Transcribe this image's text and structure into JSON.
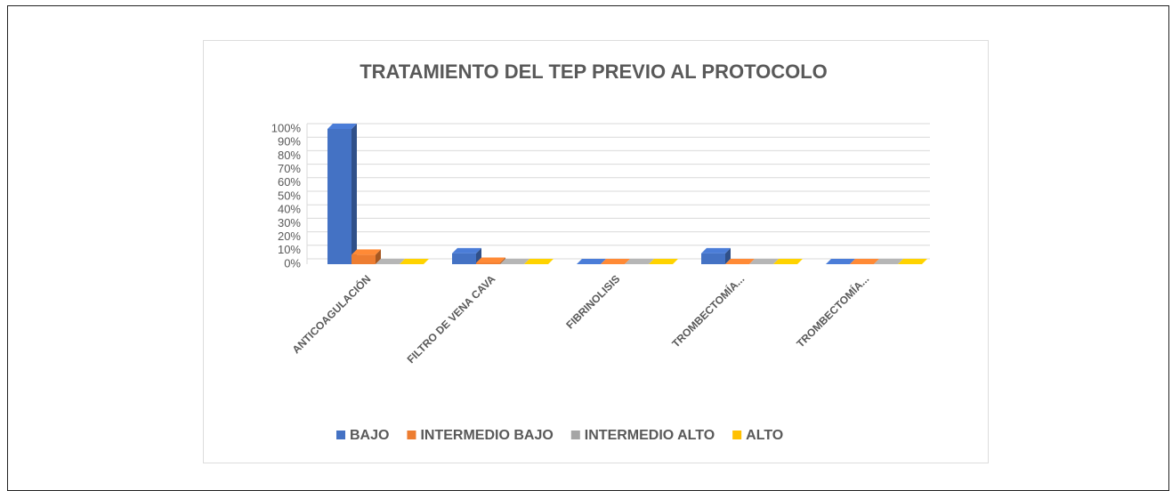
{
  "chart_data": {
    "type": "bar3d",
    "title": "TRATAMIENTO DEL TEP PREVIO AL PROTOCOLO",
    "categories": [
      "ANTICOAGULACIÓN",
      "FILTRO DE VENA CAVA",
      "FIBRINOLISIS",
      "TROMBECTOMÍA...",
      "TROMBECTOMÍA..."
    ],
    "series": [
      {
        "name": "BAJO",
        "color": "#4472c4",
        "values": [
          100,
          8,
          0,
          8,
          0
        ]
      },
      {
        "name": "INTERMEDIO BAJO",
        "color": "#ed7d31",
        "values": [
          7,
          1,
          0,
          0,
          0
        ]
      },
      {
        "name": "INTERMEDIO ALTO",
        "color": "#a5a5a5",
        "values": [
          0,
          0,
          0,
          0,
          0
        ]
      },
      {
        "name": "ALTO",
        "color": "#ffc000",
        "values": [
          0,
          0,
          0,
          0,
          0
        ]
      }
    ],
    "ylim": [
      0,
      100
    ],
    "yticks": [
      {
        "value": 0,
        "label": "0%"
      },
      {
        "value": 10,
        "label": "10%"
      },
      {
        "value": 20,
        "label": "20%"
      },
      {
        "value": 30,
        "label": "30%"
      },
      {
        "value": 40,
        "label": "40%"
      },
      {
        "value": 50,
        "label": "50%"
      },
      {
        "value": 60,
        "label": "60%"
      },
      {
        "value": 70,
        "label": "70%"
      },
      {
        "value": 80,
        "label": "80%"
      },
      {
        "value": 90,
        "label": "90%"
      },
      {
        "value": 100,
        "label": "100%"
      }
    ],
    "grid": true,
    "legend": "bottom"
  }
}
